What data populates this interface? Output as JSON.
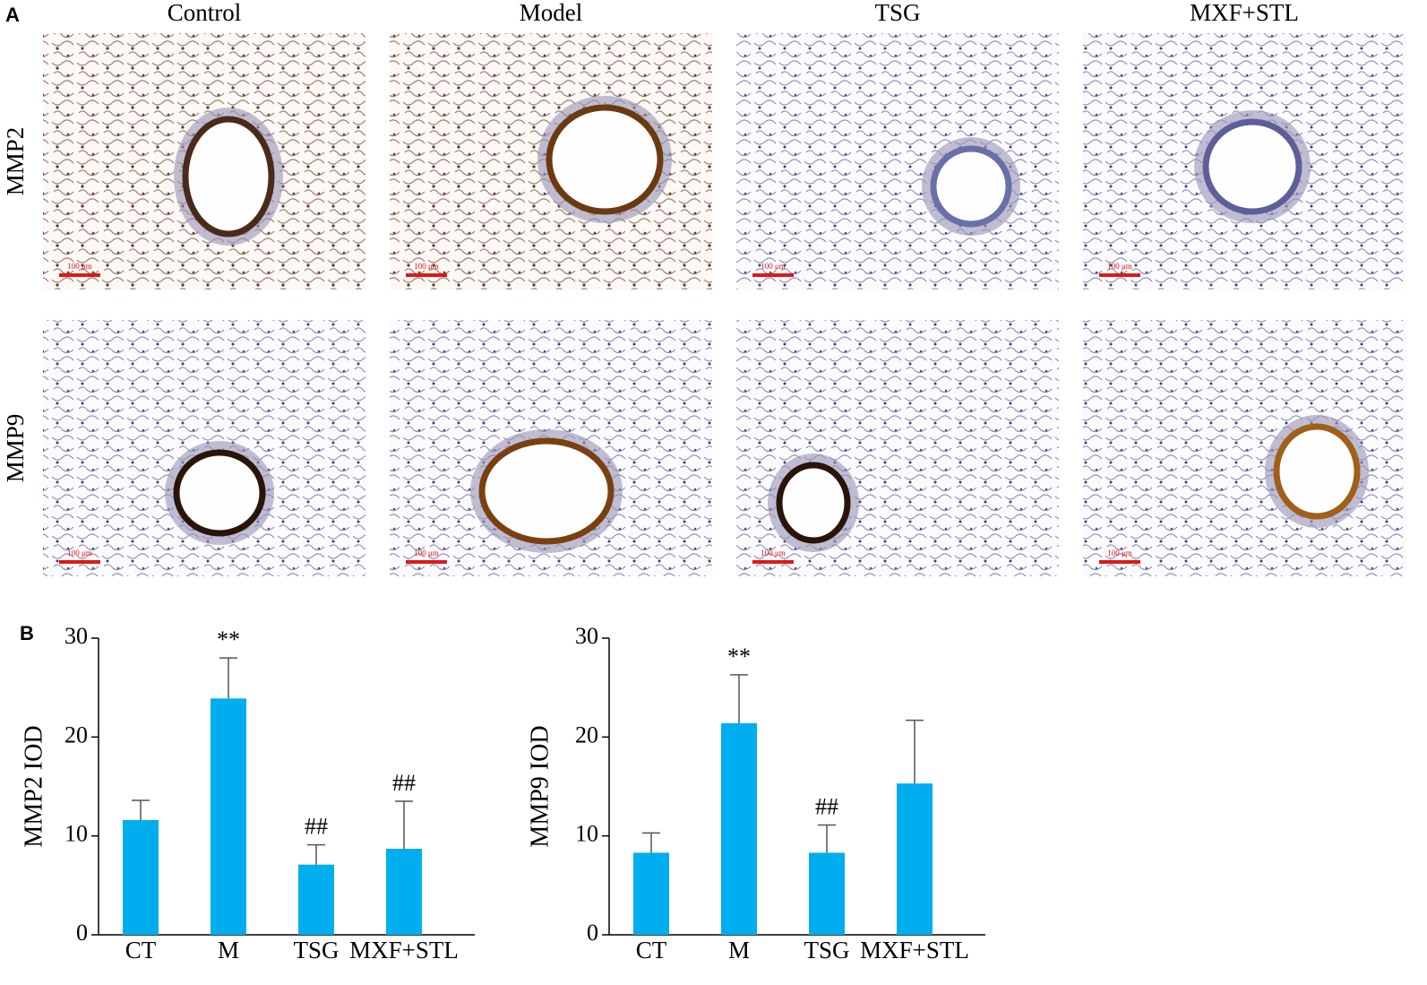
{
  "figure": {
    "panel_a": "A",
    "panel_b": "B",
    "columns": [
      "Control",
      "Model",
      "TSG",
      "MXF+STL"
    ],
    "rows": [
      "MMP2",
      "MMP9"
    ],
    "scale_bar": "100 μm"
  },
  "chart_data": [
    {
      "type": "bar",
      "ylabel": "MMP2 IOD",
      "categories": [
        "CT",
        "M",
        "TSG",
        "MXF+STL"
      ],
      "values": [
        11.6,
        23.9,
        7.1,
        8.7
      ],
      "errors": [
        2.0,
        4.1,
        2.0,
        4.8
      ],
      "annotations": [
        null,
        "**",
        "##",
        "##"
      ],
      "color": "#00aeef",
      "ylim": [
        0,
        30
      ],
      "yticks": [
        0,
        10,
        20,
        30
      ]
    },
    {
      "type": "bar",
      "ylabel": "MMP9 IOD",
      "categories": [
        "CT",
        "M",
        "TSG",
        "MXF+STL"
      ],
      "values": [
        8.3,
        21.4,
        8.3,
        15.3
      ],
      "errors": [
        2.0,
        4.9,
        2.8,
        6.4
      ],
      "annotations": [
        null,
        "**",
        "##",
        null
      ],
      "color": "#00aeef",
      "ylim": [
        0,
        30
      ],
      "yticks": [
        0,
        10,
        20,
        30
      ]
    }
  ]
}
